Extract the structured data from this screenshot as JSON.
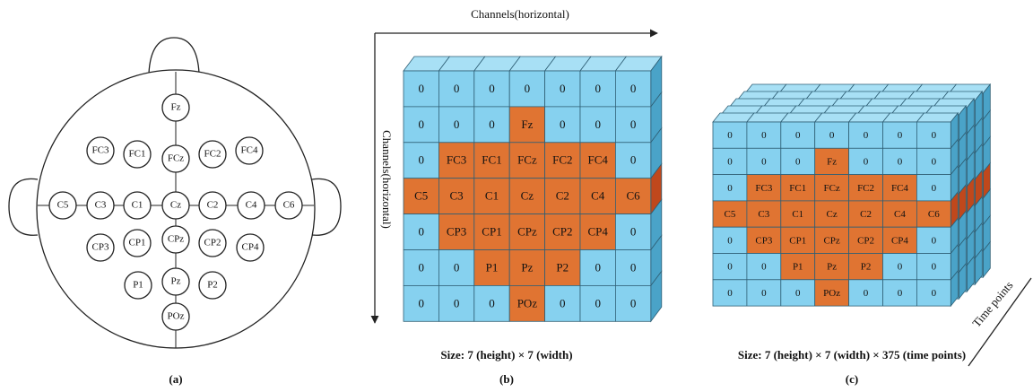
{
  "panel_a": {
    "electrodes": [
      "Fz",
      "FC3",
      "FC1",
      "FCz",
      "FC2",
      "FC4",
      "C5",
      "C3",
      "C1",
      "Cz",
      "C2",
      "C4",
      "C6",
      "CP3",
      "CP1",
      "CPz",
      "CP2",
      "CP4",
      "P1",
      "Pz",
      "P2",
      "POz"
    ],
    "caption": "(a)"
  },
  "grid": {
    "rows": [
      [
        "0",
        "0",
        "0",
        "0",
        "0",
        "0",
        "0"
      ],
      [
        "0",
        "0",
        "0",
        "Fz",
        "0",
        "0",
        "0"
      ],
      [
        "0",
        "FC3",
        "FC1",
        "FCz",
        "FC2",
        "FC4",
        "0"
      ],
      [
        "C5",
        "C3",
        "C1",
        "Cz",
        "C2",
        "C4",
        "C6"
      ],
      [
        "0",
        "CP3",
        "CP1",
        "CPz",
        "CP2",
        "CP4",
        "0"
      ],
      [
        "0",
        "0",
        "P1",
        "Pz",
        "P2",
        "0",
        "0"
      ],
      [
        "0",
        "0",
        "0",
        "POz",
        "0",
        "0",
        "0"
      ]
    ]
  },
  "panel_b": {
    "x_axis_label": "Channels(horizontal)",
    "y_axis_label": "Channels(horizontal)",
    "size": "Size: 7 (height) × 7 (width)",
    "caption": "(b)"
  },
  "panel_c": {
    "depth_label": "Time points",
    "size": "Size: 7 (height) × 7 (width) × 375 (time points)",
    "caption": "(c)"
  }
}
